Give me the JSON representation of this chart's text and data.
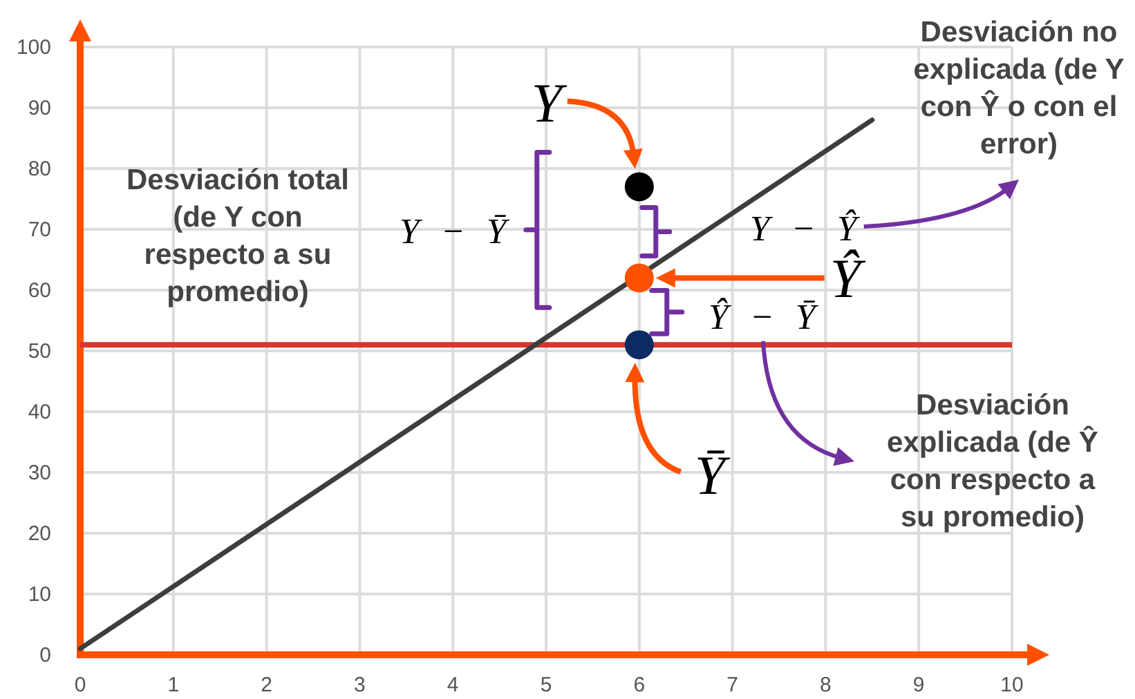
{
  "chart_data": {
    "type": "scatter",
    "series": [
      {
        "type": "line",
        "x": [
          0,
          8.5
        ],
        "values": [
          1,
          88
        ],
        "color": "#3d3d3d"
      },
      {
        "type": "scatter",
        "x": [
          6,
          6,
          6
        ],
        "values": [
          77,
          62,
          51
        ],
        "colors": [
          "#000000",
          "#ff5000",
          "#0c2a63"
        ],
        "marker": "circle"
      }
    ],
    "ref_lines": [
      {
        "axis": "y",
        "value": 51,
        "color": "#d9352b"
      }
    ],
    "annotations": [
      "Desviación total (de Y con respecto a su promedio)",
      "Desviación no explicada (de Y con Ŷ o con el error)",
      "Desviación explicada (de Ŷ con respecto a su promedio)",
      "Y − Ȳ",
      "Y − Ŷ",
      "Ŷ − Ȳ",
      "Y",
      "Ŷ",
      "Ȳ"
    ],
    "xlim": [
      0,
      10
    ],
    "ylim": [
      0,
      100
    ],
    "xticks": [
      0,
      1,
      2,
      3,
      4,
      5,
      6,
      7,
      8,
      9,
      10
    ],
    "yticks": [
      0,
      10,
      20,
      30,
      40,
      50,
      60,
      70,
      80,
      90,
      100
    ],
    "grid": true
  }
}
